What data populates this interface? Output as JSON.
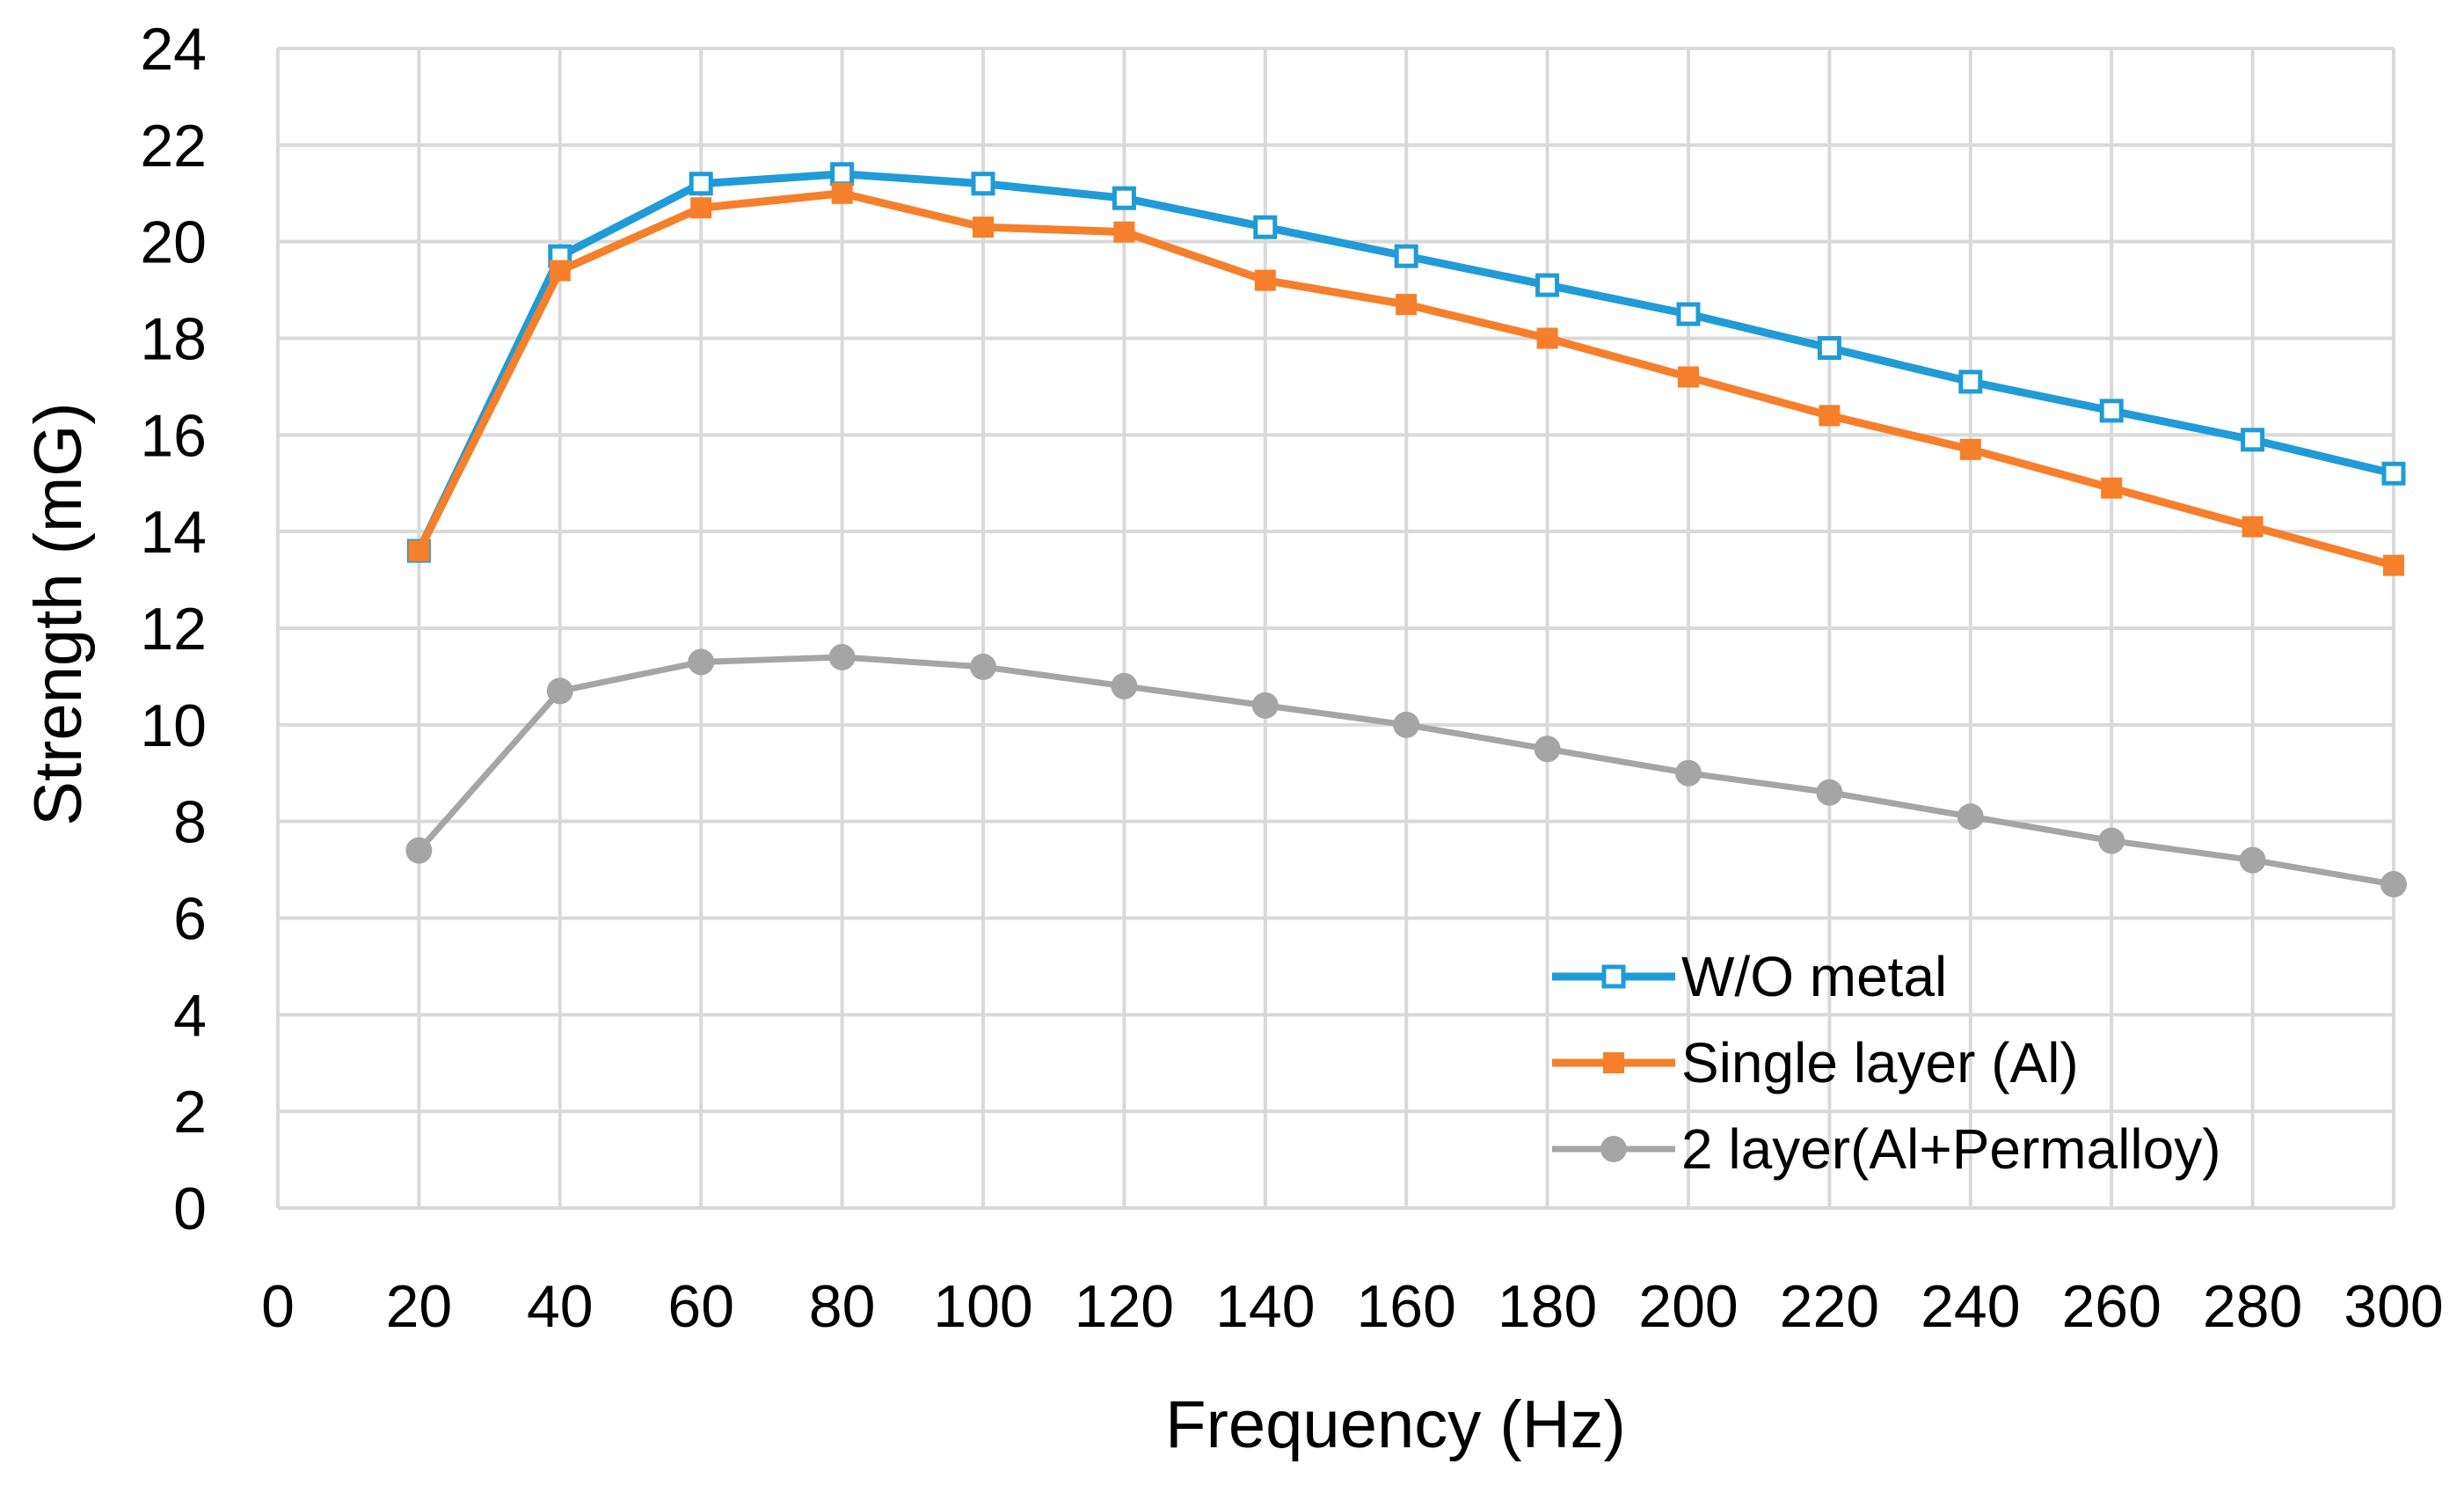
{
  "chart_data": {
    "type": "line",
    "title": "",
    "xlabel": "Frequency (Hz)",
    "ylabel": "Strength (mG)",
    "xlim": [
      0,
      300
    ],
    "ylim": [
      0,
      24
    ],
    "x_ticks": [
      "0",
      "20",
      "40",
      "60",
      "80",
      "100",
      "120",
      "140",
      "160",
      "180",
      "200",
      "220",
      "240",
      "260",
      "280",
      "300"
    ],
    "y_ticks": [
      "0",
      "2",
      "4",
      "6",
      "8",
      "10",
      "12",
      "14",
      "16",
      "18",
      "20",
      "22",
      "24"
    ],
    "grid": true,
    "legend_position": "bottom-right",
    "x": [
      20,
      40,
      60,
      80,
      100,
      120,
      140,
      160,
      180,
      200,
      220,
      240,
      260,
      280,
      300
    ],
    "series": [
      {
        "name": "W/O metal",
        "color": "#1f9bd7",
        "marker": "open-square",
        "values": [
          13.6,
          19.7,
          21.2,
          21.4,
          21.2,
          20.9,
          20.3,
          19.7,
          19.1,
          18.5,
          17.8,
          17.1,
          16.5,
          15.9,
          15.2
        ]
      },
      {
        "name": "Single layer (Al)",
        "color": "#f57f2a",
        "marker": "filled-square",
        "values": [
          13.6,
          19.4,
          20.7,
          21.0,
          20.3,
          20.2,
          19.2,
          18.7,
          18.0,
          17.2,
          16.4,
          15.7,
          14.9,
          14.1,
          13.3
        ]
      },
      {
        "name": "2 layer(Al+Permalloy)",
        "color": "#a5a5a5",
        "marker": "filled-circle",
        "values": [
          7.4,
          10.7,
          11.3,
          11.4,
          11.2,
          10.8,
          10.4,
          10.0,
          9.5,
          9.0,
          8.6,
          8.1,
          7.6,
          7.2,
          6.7
        ]
      }
    ]
  }
}
